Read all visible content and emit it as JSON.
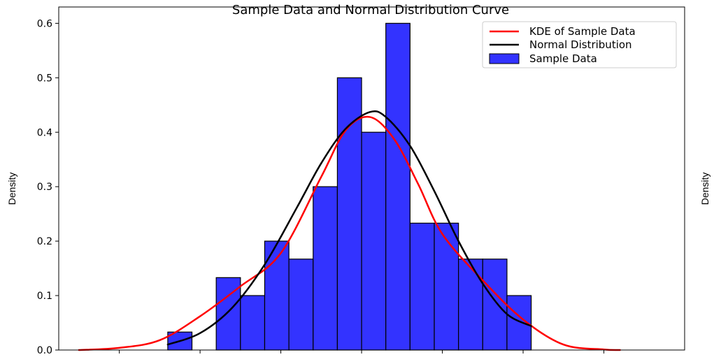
{
  "chart_data": {
    "type": "bar",
    "title": "Sample Data and Normal Distribution Curve",
    "xlabel": "",
    "ylabel": "Density",
    "right_ylabel": "Density",
    "xlim": [
      -3.75,
      4.0
    ],
    "ylim": [
      0.0,
      0.63
    ],
    "yticks": [
      0.0,
      0.1,
      0.2,
      0.3,
      0.4,
      0.5,
      0.6
    ],
    "ytick_labels": [
      "0.0",
      "0.1",
      "0.2",
      "0.3",
      "0.4",
      "0.5",
      "0.6"
    ],
    "xticks": [
      -3,
      -2,
      -1,
      0,
      1,
      2,
      3
    ],
    "xtick_labels": [],
    "grid": false,
    "legend_position": "top-right",
    "colors": {
      "bars": "#3333ff",
      "bar_edge": "#000000",
      "kde": "#ff0000",
      "normal": "#000000"
    },
    "histogram": {
      "name": "Sample Data",
      "bin_width": 0.3,
      "bins": [
        {
          "left": -2.4,
          "density": 0.033
        },
        {
          "left": -2.1,
          "density": 0.0
        },
        {
          "left": -1.8,
          "density": 0.133
        },
        {
          "left": -1.5,
          "density": 0.1
        },
        {
          "left": -1.2,
          "density": 0.2
        },
        {
          "left": -0.9,
          "density": 0.167
        },
        {
          "left": -0.6,
          "density": 0.3
        },
        {
          "left": -0.3,
          "density": 0.5
        },
        {
          "left": 0.0,
          "density": 0.4
        },
        {
          "left": 0.3,
          "density": 0.6
        },
        {
          "left": 0.6,
          "density": 0.233
        },
        {
          "left": 0.9,
          "density": 0.233
        },
        {
          "left": 1.2,
          "density": 0.167
        },
        {
          "left": 1.5,
          "density": 0.167
        },
        {
          "left": 1.8,
          "density": 0.1
        }
      ]
    },
    "series": [
      {
        "name": "KDE of Sample Data",
        "type": "line",
        "x": [
          -3.5,
          -3.0,
          -2.5,
          -2.0,
          -1.5,
          -1.0,
          -0.5,
          -0.2,
          0.1,
          0.4,
          0.7,
          1.0,
          1.5,
          2.0,
          2.5,
          3.0,
          3.2
        ],
        "y": [
          0.0,
          0.004,
          0.018,
          0.062,
          0.117,
          0.178,
          0.318,
          0.403,
          0.428,
          0.388,
          0.305,
          0.213,
          0.128,
          0.056,
          0.01,
          0.001,
          0.0
        ]
      },
      {
        "name": "Normal Distribution",
        "type": "line",
        "x": [
          -2.4,
          -2.0,
          -1.6,
          -1.2,
          -0.8,
          -0.5,
          -0.2,
          0.1,
          0.3,
          0.6,
          0.9,
          1.2,
          1.5,
          1.8,
          2.1
        ],
        "y": [
          0.01,
          0.031,
          0.078,
          0.157,
          0.262,
          0.343,
          0.406,
          0.437,
          0.428,
          0.375,
          0.292,
          0.2,
          0.122,
          0.066,
          0.044
        ]
      }
    ]
  }
}
